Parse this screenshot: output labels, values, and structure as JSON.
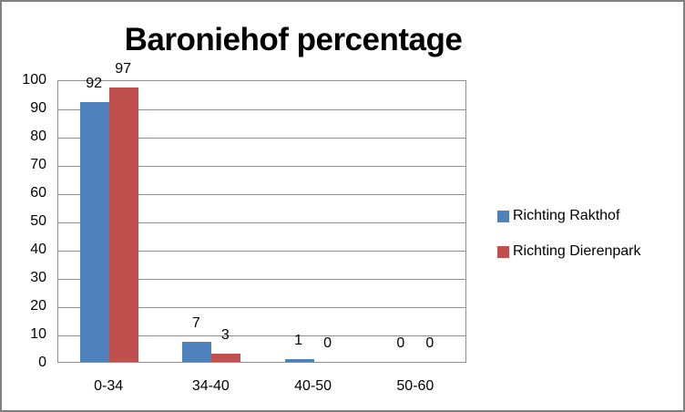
{
  "chart_data": {
    "type": "bar",
    "title": "Baroniehof percentage",
    "categories": [
      "0-34",
      "34-40",
      "40-50",
      "50-60"
    ],
    "series": [
      {
        "name": "Richting Rakthof",
        "color": "#4F81BD",
        "values": [
          92,
          7,
          1,
          0
        ]
      },
      {
        "name": "Richting Dierenpark",
        "color": "#C0504D",
        "values": [
          97,
          3,
          0,
          0
        ]
      }
    ],
    "xlabel": "",
    "ylabel": "",
    "ylim": [
      0,
      100
    ],
    "yticks": [
      0,
      10,
      20,
      30,
      40,
      50,
      60,
      70,
      80,
      90,
      100
    ],
    "grid": true,
    "legend_position": "right",
    "data_labels": true,
    "colors": {
      "frame_border": "#808080",
      "axis_and_grid": "#8E8E8E",
      "text": "#000000",
      "background": "#FFFFFF"
    }
  }
}
